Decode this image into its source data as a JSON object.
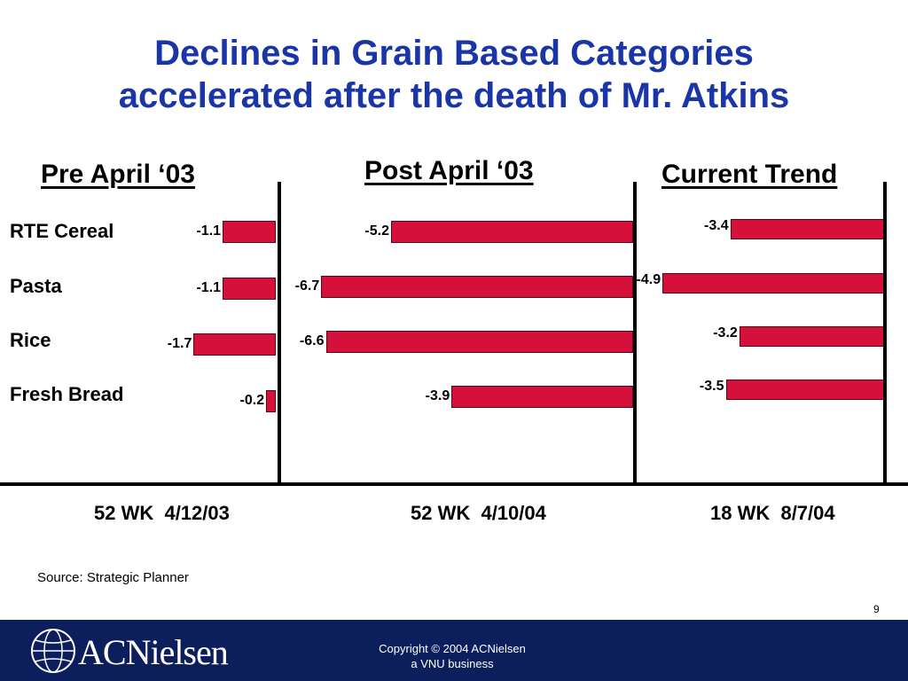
{
  "title_line1": "Declines in Grain Based Categories",
  "title_line2": "accelerated after the death of Mr. Atkins",
  "chart_data": {
    "type": "bar",
    "orientation": "horizontal",
    "categories": [
      "RTE Cereal",
      "Pasta",
      "Rice",
      "Fresh Bread"
    ],
    "panels": [
      {
        "title": "Pre April ‘03",
        "period": "52 WK  4/12/03",
        "values": [
          -1.1,
          -1.1,
          -1.7,
          -0.2
        ],
        "labels": [
          "-1.1",
          "-1.1",
          "-1.7",
          "-0.2"
        ]
      },
      {
        "title": "Post April ‘03",
        "period": "52 WK  4/10/04",
        "values": [
          -5.2,
          -6.7,
          -6.6,
          -3.9
        ],
        "labels": [
          "-5.2",
          "-6.7",
          "-6.6",
          "-3.9"
        ]
      },
      {
        "title": "Current Trend",
        "period": "18 WK  8/7/04",
        "values": [
          -3.4,
          -4.9,
          -3.2,
          -3.5
        ],
        "labels": [
          "-3.4",
          "-4.9",
          "-3.2",
          "-3.5"
        ]
      }
    ],
    "bar_color": "#d5103a"
  },
  "source": "Source: Strategic Planner",
  "page_number": "9",
  "footer": {
    "logo_text": "ACNielsen",
    "copyright_line1": "Copyright © 2004 ACNielsen",
    "copyright_line2": "a VNU business",
    "background": "#0d1e5c"
  }
}
